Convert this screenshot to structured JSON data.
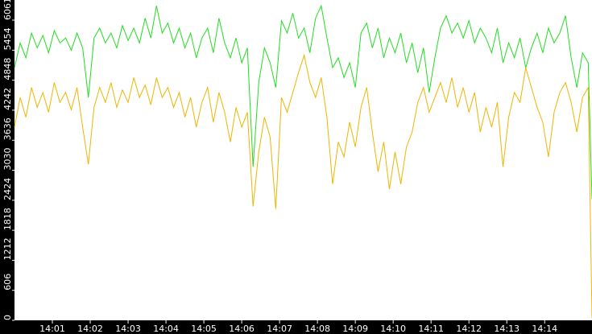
{
  "chart_data": {
    "type": "line",
    "x": [
      0,
      0.15,
      0.3,
      0.45,
      0.6,
      0.75,
      0.9,
      1.05,
      1.2,
      1.35,
      1.5,
      1.65,
      1.8,
      1.95,
      2.1,
      2.25,
      2.4,
      2.55,
      2.7,
      2.85,
      3,
      3.15,
      3.3,
      3.45,
      3.6,
      3.75,
      3.9,
      4.05,
      4.2,
      4.35,
      4.5,
      4.65,
      4.8,
      4.95,
      5.1,
      5.25,
      5.4,
      5.55,
      5.7,
      5.85,
      6,
      6.15,
      6.3,
      6.45,
      6.6,
      6.75,
      6.9,
      7.05,
      7.2,
      7.35,
      7.5,
      7.65,
      7.8,
      7.95,
      8.1,
      8.25,
      8.4,
      8.55,
      8.7,
      8.85,
      9,
      9.15,
      9.3,
      9.45,
      9.6,
      9.75,
      9.9,
      10.05,
      10.2,
      10.35,
      10.5,
      10.65,
      10.8,
      10.95,
      11.1,
      11.25,
      11.4,
      11.55,
      11.7,
      11.85,
      12,
      12.15,
      12.3,
      12.45,
      12.6,
      12.75,
      12.9,
      13.05,
      13.2,
      13.35,
      13.5,
      13.65,
      13.8,
      13.95,
      14.1,
      14.25,
      14.4,
      14.55,
      14.7,
      14.85,
      15,
      15.15,
      15.25
    ],
    "series": [
      {
        "color": "#22dd22",
        "values": [
          5100,
          5600,
          5300,
          5800,
          5500,
          5750,
          5400,
          5850,
          5600,
          5700,
          5450,
          5800,
          5500,
          4500,
          5700,
          5900,
          5600,
          5800,
          5500,
          5950,
          5650,
          5900,
          5600,
          6100,
          5700,
          6350,
          5800,
          6000,
          5600,
          5900,
          5500,
          5800,
          5300,
          5700,
          5900,
          5400,
          6100,
          5600,
          5300,
          5700,
          5200,
          5500,
          3100,
          4800,
          5500,
          5200,
          4700,
          6050,
          5800,
          6200,
          5700,
          5900,
          5400,
          6100,
          6350,
          5700,
          5100,
          5300,
          4900,
          5200,
          4700,
          5800,
          6000,
          5500,
          5900,
          5300,
          5700,
          5400,
          5800,
          5200,
          5600,
          5000,
          5500,
          4600,
          5300,
          5900,
          6150,
          5800,
          6000,
          5700,
          6050,
          5600,
          5900,
          5700,
          5400,
          5900,
          5200,
          5600,
          5300,
          5700,
          5100,
          5500,
          5800,
          5400,
          5900,
          5600,
          5800,
          6150,
          5300,
          4700,
          5400,
          5200,
          2450
        ]
      },
      {
        "color": "#f0b400",
        "values": [
          3900,
          4500,
          4100,
          4700,
          4300,
          4600,
          4200,
          4800,
          4400,
          4600,
          4250,
          4700,
          3900,
          3150,
          4300,
          4700,
          4400,
          4800,
          4300,
          4650,
          4400,
          4900,
          4500,
          4750,
          4350,
          4900,
          4500,
          4700,
          4300,
          4600,
          4100,
          4500,
          3900,
          4400,
          4700,
          4000,
          4600,
          4200,
          3600,
          4300,
          3900,
          4200,
          2300,
          3400,
          4100,
          3700,
          2250,
          4500,
          4200,
          4600,
          5000,
          5350,
          4800,
          4500,
          4900,
          4100,
          2750,
          3600,
          3300,
          4000,
          3500,
          4300,
          4700,
          3800,
          3000,
          3600,
          2650,
          3400,
          2750,
          3500,
          3800,
          4400,
          4700,
          4200,
          4500,
          4800,
          4400,
          4900,
          4300,
          4700,
          4200,
          4600,
          3800,
          4300,
          3900,
          4400,
          3100,
          4100,
          4600,
          4400,
          5100,
          4700,
          4300,
          4000,
          3300,
          4200,
          4600,
          4800,
          4400,
          3800,
          4500,
          4700,
          50
        ]
      }
    ],
    "xlim": [
      0,
      15.25
    ],
    "xticks": [
      {
        "value": 1,
        "label": "14:01"
      },
      {
        "value": 2,
        "label": "14:02"
      },
      {
        "value": 3,
        "label": "14:03"
      },
      {
        "value": 4,
        "label": "14:04"
      },
      {
        "value": 5,
        "label": "14:05"
      },
      {
        "value": 6,
        "label": "14:06"
      },
      {
        "value": 7,
        "label": "14:07"
      },
      {
        "value": 8,
        "label": "14:08"
      },
      {
        "value": 9,
        "label": "14:09"
      },
      {
        "value": 10,
        "label": "14:10"
      },
      {
        "value": 11,
        "label": "14:11"
      },
      {
        "value": 12,
        "label": "14:12"
      },
      {
        "value": 13,
        "label": "14:13"
      },
      {
        "value": 14,
        "label": "14:14"
      }
    ],
    "ylim": [
      0,
      6467
    ],
    "yticks": [
      0,
      606,
      1212,
      1818,
      2424,
      3030,
      3636,
      4242,
      4848,
      5454,
      6061
    ]
  }
}
